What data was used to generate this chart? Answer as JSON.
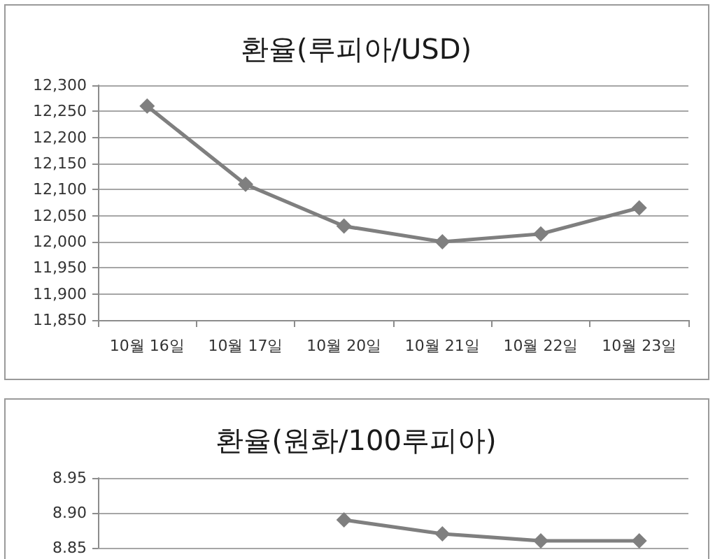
{
  "chart_data": [
    {
      "type": "line",
      "title": "환율(루피아/USD)",
      "categories": [
        "10월 16일",
        "10월 17일",
        "10월 20일",
        "10월 21일",
        "10월 22일",
        "10월 23일"
      ],
      "values": [
        12260,
        12110,
        12030,
        12000,
        12015,
        12065
      ],
      "color": "#7f7f7f",
      "marker": "diamond",
      "ylim": [
        11850,
        12300
      ],
      "yticks": [
        {
          "value": 11850,
          "label": "11,850"
        },
        {
          "value": 11900,
          "label": "11,900"
        },
        {
          "value": 11950,
          "label": "11,950"
        },
        {
          "value": 12000,
          "label": "12,000"
        },
        {
          "value": 12050,
          "label": "12,050"
        },
        {
          "value": 12100,
          "label": "12,100"
        },
        {
          "value": 12150,
          "label": "12,150"
        },
        {
          "value": 12200,
          "label": "12,200"
        },
        {
          "value": 12250,
          "label": "12,250"
        },
        {
          "value": 12300,
          "label": "12,300"
        }
      ],
      "grid": "y"
    },
    {
      "type": "line",
      "title": "환율(원화/100루피아)",
      "categories": [
        null,
        null,
        null,
        null,
        null,
        null
      ],
      "values": [
        null,
        null,
        8.89,
        8.87,
        8.86,
        8.86
      ],
      "color": "#7f7f7f",
      "marker": "diamond",
      "ylim": [
        8.85,
        8.95
      ],
      "yticks": [
        8.85,
        {
          "value": 8.9,
          "label": "8.90"
        },
        8.95
      ],
      "grid": "y",
      "tick_labels": "y"
    }
  ]
}
